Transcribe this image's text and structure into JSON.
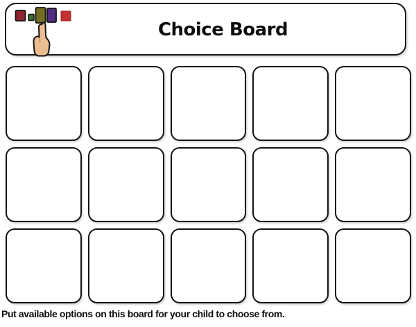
{
  "page": {
    "background_color": "#ffffff",
    "border_color": "#141414"
  },
  "header": {
    "title": "Choice Board"
  },
  "icon": {
    "name": "hand-pointing-at-choices-icon",
    "square_colors": [
      "#8E2531",
      "#3E6B31",
      "#756E20",
      "#4F2C7E",
      "#C23232"
    ],
    "hand_color": "#EDBD92"
  },
  "grid": {
    "rows": 3,
    "columns": 5,
    "cell_content": ""
  },
  "footer": {
    "instruction": "Put available options on this board for your child to choose from."
  }
}
